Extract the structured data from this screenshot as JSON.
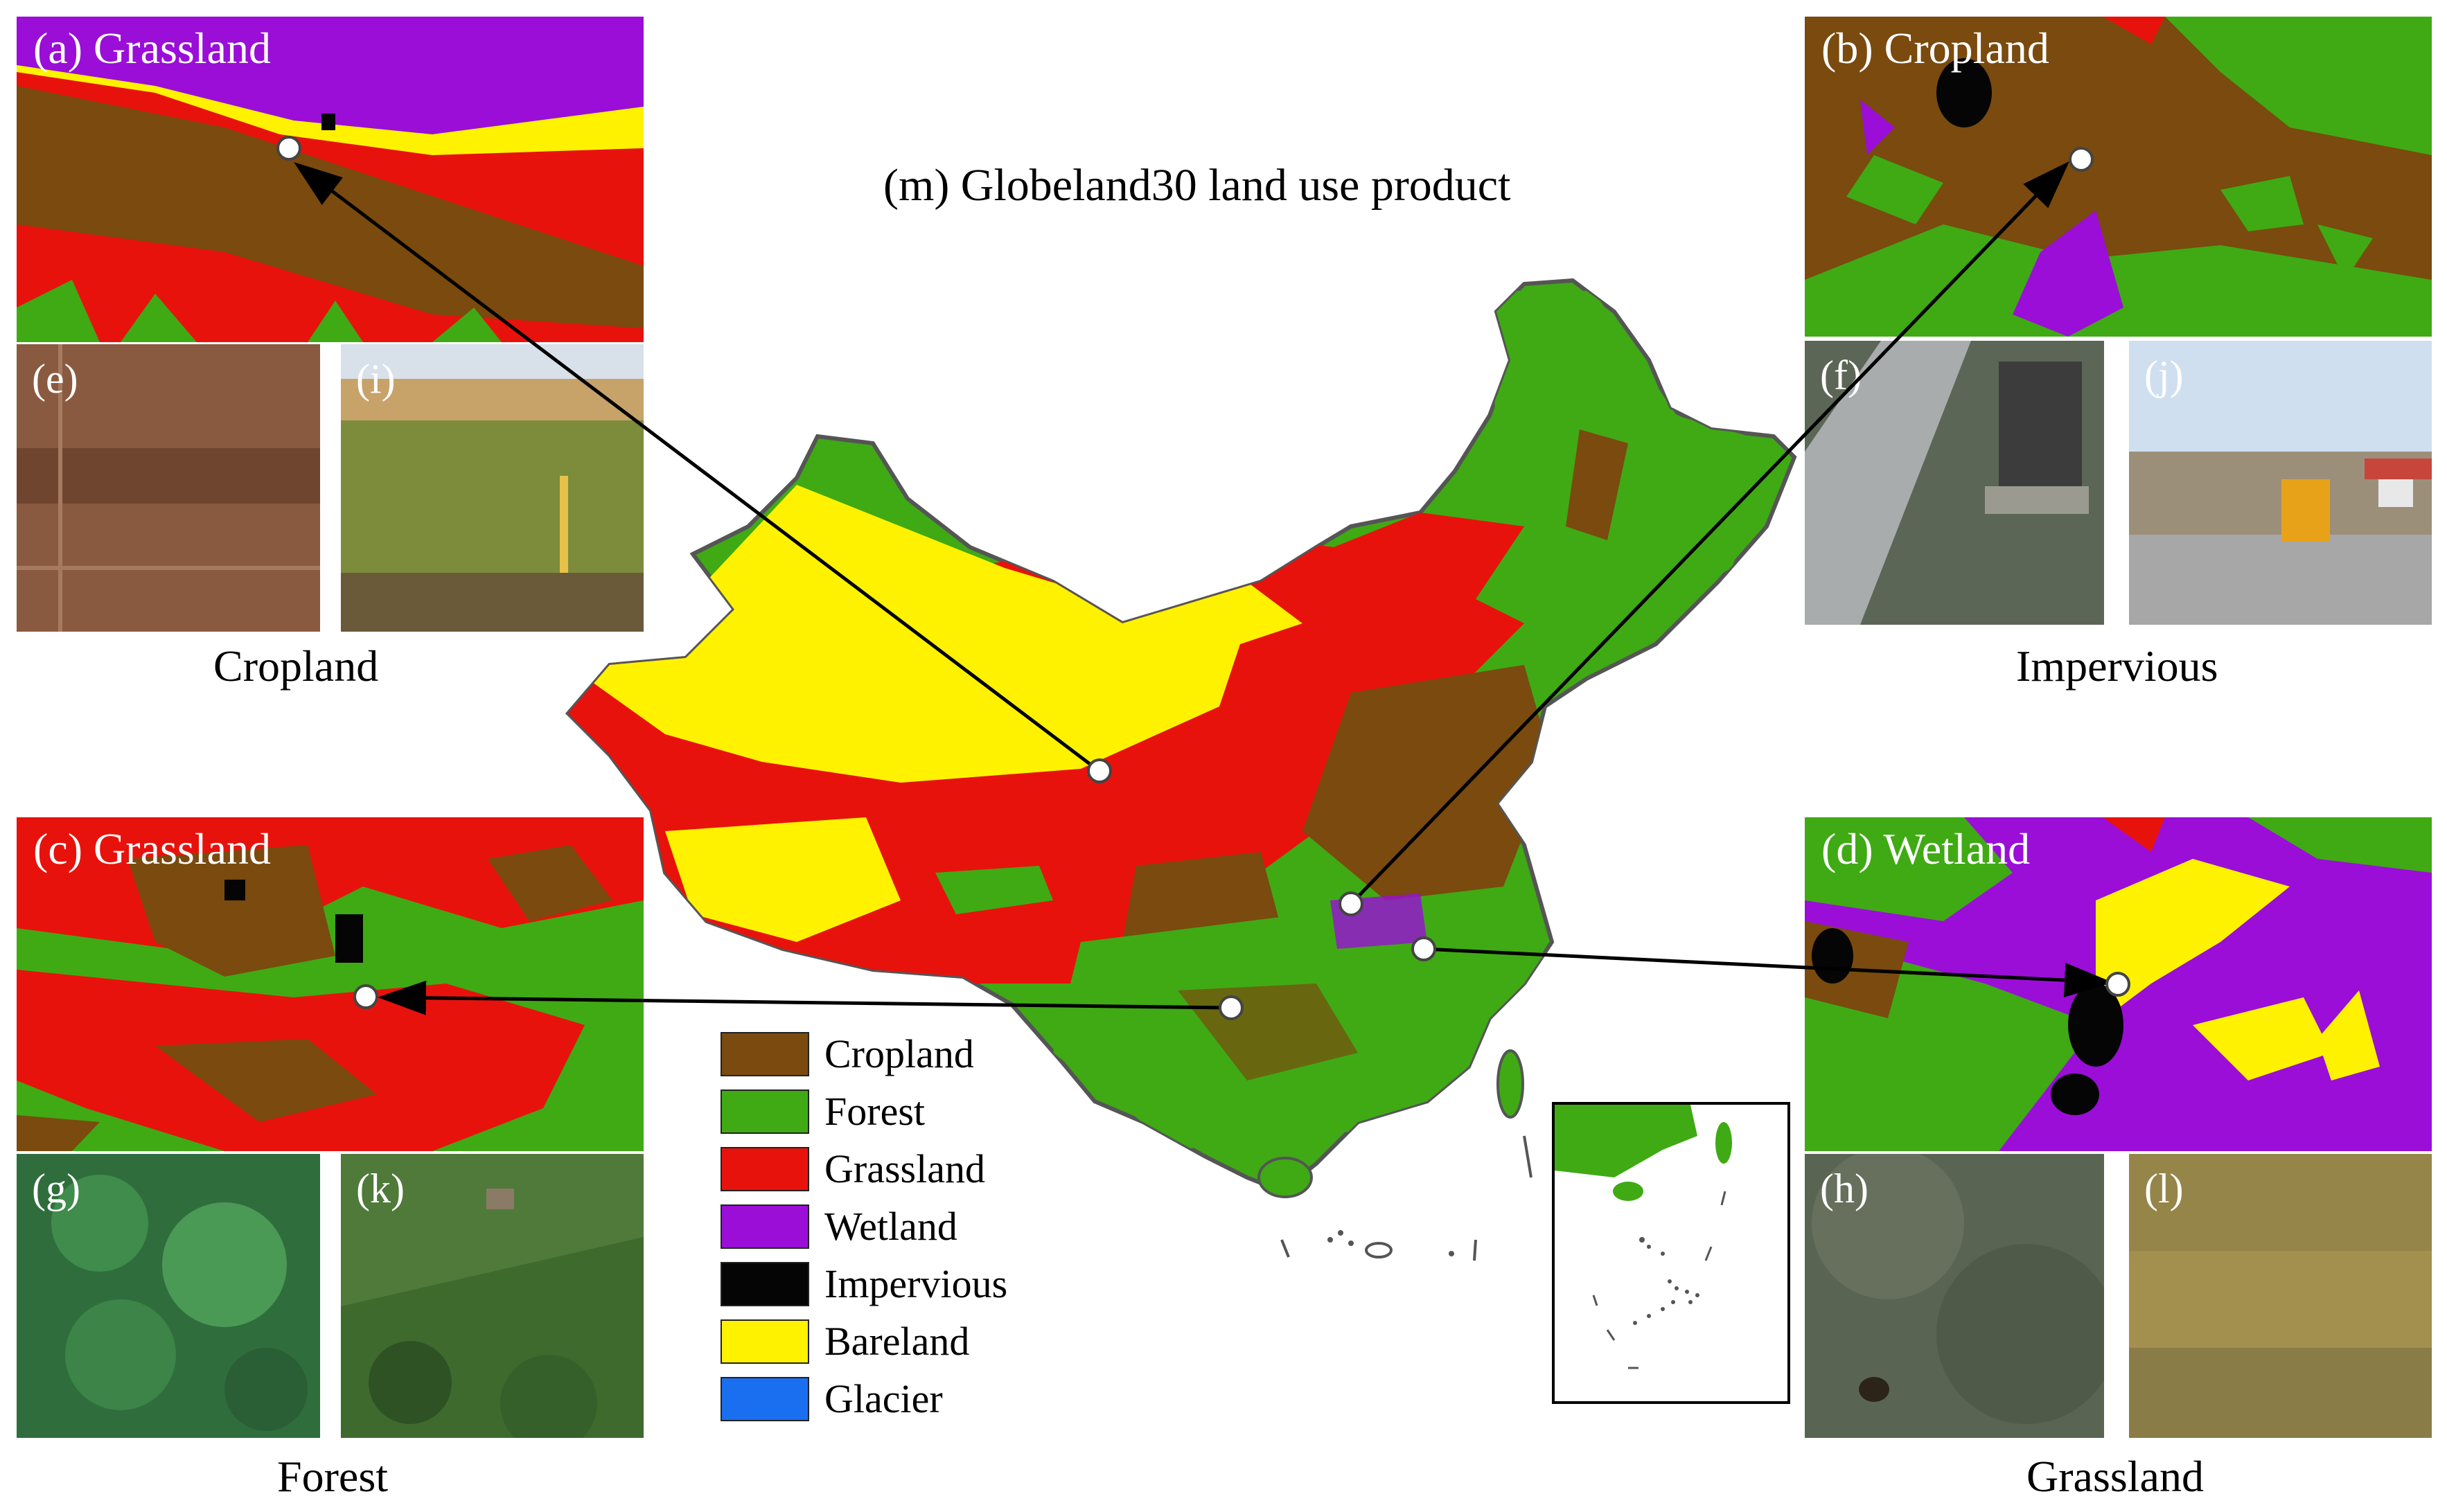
{
  "map": {
    "title": "(m) Globeland30 land use product"
  },
  "legend": {
    "items": [
      {
        "label": "Cropland",
        "color": "#7a4a0e"
      },
      {
        "label": "Forest",
        "color": "#3faa14"
      },
      {
        "label": "Grassland",
        "color": "#e8120c"
      },
      {
        "label": "Wetland",
        "color": "#9a0ed8"
      },
      {
        "label": "Impervious",
        "color": "#050505"
      },
      {
        "label": "Bareland",
        "color": "#fff200"
      },
      {
        "label": "Glacier",
        "color": "#1a6ff0"
      }
    ]
  },
  "panels": {
    "a": {
      "label": "(a) Grassland"
    },
    "b": {
      "label": "(b) Cropland"
    },
    "c": {
      "label": "(c) Grassland"
    },
    "d": {
      "label": "(d) Wetland"
    }
  },
  "photos": {
    "e": "(e)",
    "f": "(f)",
    "g": "(g)",
    "h": "(h)",
    "i": "(i)",
    "j": "(j)",
    "k": "(k)",
    "l": "(l)"
  },
  "captions": {
    "top_left": "Cropland",
    "top_right": "Impervious",
    "bottom_left": "Forest",
    "bottom_right": "Grassland"
  }
}
